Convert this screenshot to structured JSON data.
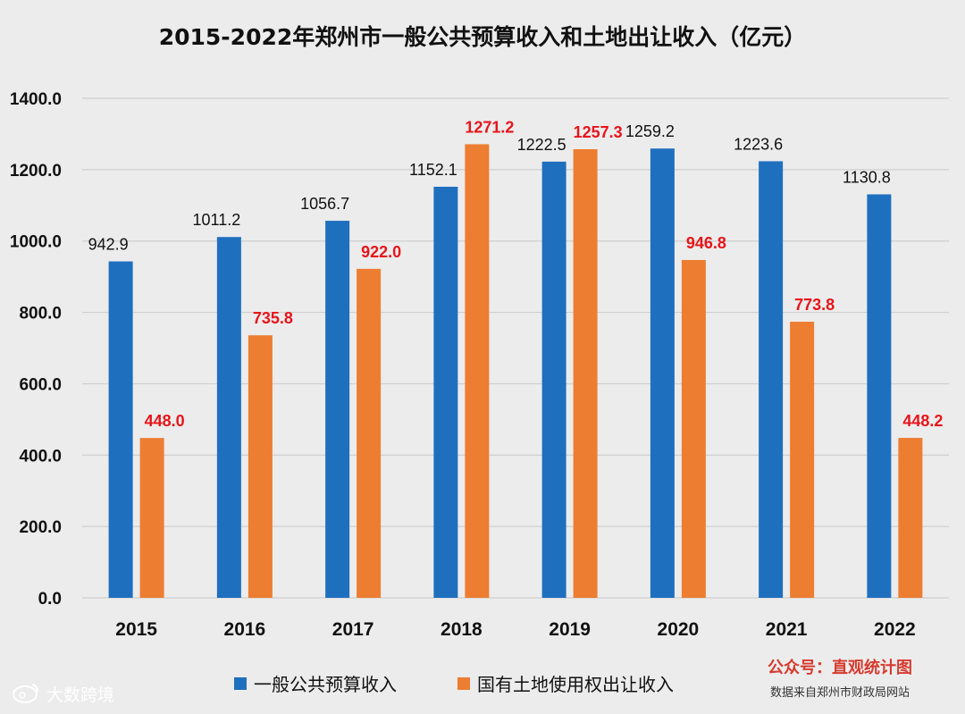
{
  "chart_data": {
    "type": "bar",
    "title": "2015-2022年郑州市一般公共预算收入和土地出让收入（亿元）",
    "categories": [
      "2015",
      "2016",
      "2017",
      "2018",
      "2019",
      "2020",
      "2021",
      "2022"
    ],
    "series": [
      {
        "name": "一般公共预算收入",
        "color": "#1f6fbf",
        "label_color": "#111111",
        "values": [
          942.9,
          1011.2,
          1056.7,
          1152.1,
          1222.5,
          1259.2,
          1223.6,
          1130.8
        ],
        "labels": [
          "942.9",
          "1011.2",
          "1056.7",
          "1152.1",
          "1222.5",
          "1259.2",
          "1223.6",
          "1130.8"
        ]
      },
      {
        "name": "国有土地使用权出让收入",
        "color": "#ed7d31",
        "label_color": "#e8141b",
        "values": [
          448.0,
          735.8,
          922.0,
          1271.2,
          1257.3,
          946.8,
          773.8,
          448.2
        ],
        "labels": [
          "448.0",
          "735.8",
          "922.0",
          "1271.2",
          "1257.3",
          "946.8",
          "773.8",
          "448.2"
        ]
      }
    ],
    "xlabel": "",
    "ylabel": "",
    "ylim": [
      0,
      1400
    ],
    "yticks": [
      0,
      200,
      400,
      600,
      800,
      1000,
      1200,
      1400
    ],
    "ytick_labels": [
      "0.0",
      "200.0",
      "400.0",
      "600.0",
      "800.0",
      "1000.0",
      "1200.0",
      "1400.0"
    ],
    "grid": true,
    "legend": "bottom"
  },
  "credit": {
    "account": "公众号：直观统计图",
    "source": "数据来自郑州市财政局网站",
    "account_color": "#d63b2f"
  },
  "watermark": {
    "text": "大数跨境",
    "icon": "weibo-logo-icon"
  }
}
